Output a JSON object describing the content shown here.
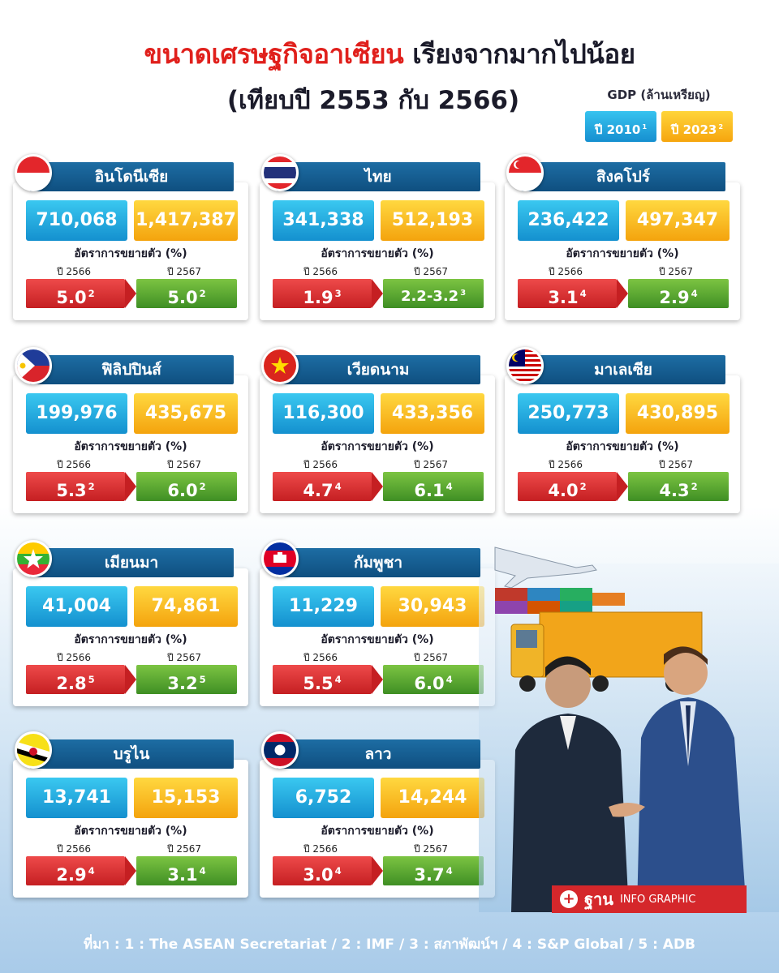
{
  "title": {
    "part1": "ขนาดเศรษฐกิจอาเซียน",
    "part2": "เรียงจากมากไปน้อย",
    "line2": "(เทียบปี 2553 กับ 2566)"
  },
  "legend": {
    "label": "GDP (ล้านเหรียญ)",
    "y2010": "ปี 2010",
    "y2010_ref": "1",
    "y2023": "ปี 2023",
    "y2023_ref": "2"
  },
  "growth_label": "อัตราการขยายตัว (%)",
  "year_a": "ปี 2566",
  "year_b": "ปี 2567",
  "countries": [
    {
      "name": "อินโดนีเซีย",
      "gdp2010": "710,068",
      "gdp2023": "1,417,387",
      "g66": "5.0",
      "g66_ref": "2",
      "g67": "5.0",
      "g67_ref": "2"
    },
    {
      "name": "ไทย",
      "gdp2010": "341,338",
      "gdp2023": "512,193",
      "g66": "1.9",
      "g66_ref": "3",
      "g67": "2.2-3.2",
      "g67_ref": "3"
    },
    {
      "name": "สิงคโปร์",
      "gdp2010": "236,422",
      "gdp2023": "497,347",
      "g66": "3.1",
      "g66_ref": "4",
      "g67": "2.9",
      "g67_ref": "4"
    },
    {
      "name": "ฟิลิปปินส์",
      "gdp2010": "199,976",
      "gdp2023": "435,675",
      "g66": "5.3",
      "g66_ref": "2",
      "g67": "6.0",
      "g67_ref": "2"
    },
    {
      "name": "เวียดนาม",
      "gdp2010": "116,300",
      "gdp2023": "433,356",
      "g66": "4.7",
      "g66_ref": "4",
      "g67": "6.1",
      "g67_ref": "4"
    },
    {
      "name": "มาเลเซีย",
      "gdp2010": "250,773",
      "gdp2023": "430,895",
      "g66": "4.0",
      "g66_ref": "2",
      "g67": "4.3",
      "g67_ref": "2"
    },
    {
      "name": "เมียนมา",
      "gdp2010": "41,004",
      "gdp2023": "74,861",
      "g66": "2.8",
      "g66_ref": "5",
      "g67": "3.2",
      "g67_ref": "5"
    },
    {
      "name": "กัมพูชา",
      "gdp2010": "11,229",
      "gdp2023": "30,943",
      "g66": "5.5",
      "g66_ref": "4",
      "g67": "6.0",
      "g67_ref": "4"
    },
    {
      "name": "บรูไน",
      "gdp2010": "13,741",
      "gdp2023": "15,153",
      "g66": "2.9",
      "g66_ref": "4",
      "g67": "3.1",
      "g67_ref": "4"
    },
    {
      "name": "ลาว",
      "gdp2010": "6,752",
      "gdp2023": "14,244",
      "g66": "3.0",
      "g66_ref": "4",
      "g67": "3.7",
      "g67_ref": "4"
    }
  ],
  "brand": {
    "name": "ฐาน",
    "sub": "INFO GRAPHIC"
  },
  "source": "ที่มา : 1 : The ASEAN Secretariat / 2 : IMF / 3 : สภาพัฒน์ฯ / 4 : S&P Global / 5 : ADB",
  "colors": {
    "gdp2010": "#1490cf",
    "gdp2023": "#f4a30d",
    "growth2566": "#c51f22",
    "growth2567": "#3f8f24",
    "banner": "#0f4f80",
    "title_red": "#e0201c"
  }
}
